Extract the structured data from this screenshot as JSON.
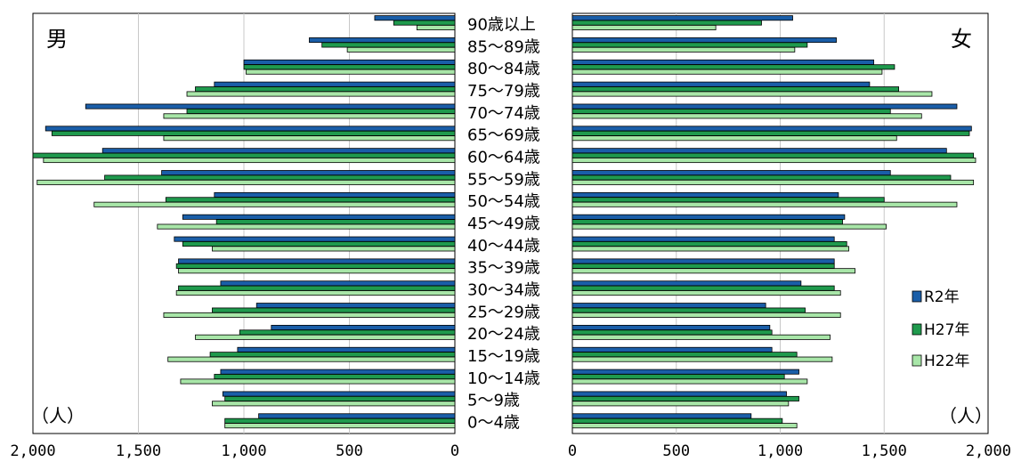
{
  "chart_data": {
    "type": "bar",
    "orientation": "horizontal",
    "layout": "population-pyramid",
    "categories": [
      "90歳以上",
      "85～89歳",
      "80～84歳",
      "75～79歳",
      "70～74歳",
      "65～69歳",
      "60～64歳",
      "55～59歳",
      "50～54歳",
      "45～49歳",
      "40～44歳",
      "35～39歳",
      "30～34歳",
      "25～29歳",
      "20～24歳",
      "15～19歳",
      "10～14歳",
      "5～9歳",
      "0～4歳"
    ],
    "series_names": [
      "R2年",
      "H27年",
      "H22年"
    ],
    "colors": [
      "#1a5ea8",
      "#1f9a4d",
      "#a8e6a8"
    ],
    "male": {
      "label": "男",
      "unit": "（人）",
      "xlim": [
        2000,
        0
      ],
      "ticks": [
        "2,000",
        "1,500",
        "1,000",
        "500",
        "0"
      ],
      "tick_values": [
        2000,
        1500,
        1000,
        500,
        0
      ],
      "series": [
        {
          "name": "R2年",
          "values": [
            380,
            690,
            1000,
            1140,
            1750,
            1940,
            1670,
            1390,
            1140,
            1290,
            1330,
            1310,
            1110,
            940,
            870,
            1030,
            1110,
            1100,
            930
          ]
        },
        {
          "name": "H27年",
          "values": [
            290,
            630,
            1000,
            1230,
            1270,
            1910,
            2000,
            1660,
            1370,
            1130,
            1290,
            1320,
            1310,
            1150,
            1020,
            1160,
            1140,
            1090,
            1090
          ]
        },
        {
          "name": "H22年",
          "values": [
            180,
            510,
            990,
            1270,
            1380,
            1380,
            1950,
            1980,
            1710,
            1410,
            1150,
            1310,
            1320,
            1380,
            1230,
            1360,
            1300,
            1150,
            1090
          ]
        }
      ]
    },
    "female": {
      "label": "女",
      "unit": "（人）",
      "xlim": [
        0,
        2000
      ],
      "ticks": [
        "0",
        "500",
        "1,000",
        "1,500",
        "2,000"
      ],
      "tick_values": [
        0,
        500,
        1000,
        1500,
        2000
      ],
      "series": [
        {
          "name": "R2年",
          "values": [
            1060,
            1270,
            1450,
            1430,
            1850,
            1920,
            1800,
            1530,
            1280,
            1310,
            1260,
            1260,
            1100,
            930,
            950,
            960,
            1090,
            1030,
            860
          ]
        },
        {
          "name": "H27年",
          "values": [
            910,
            1130,
            1550,
            1570,
            1530,
            1910,
            1930,
            1820,
            1500,
            1300,
            1320,
            1260,
            1260,
            1120,
            960,
            1080,
            1020,
            1090,
            1010
          ]
        },
        {
          "name": "H22年",
          "values": [
            690,
            1070,
            1490,
            1730,
            1680,
            1560,
            1940,
            1930,
            1850,
            1510,
            1330,
            1360,
            1290,
            1290,
            1240,
            1250,
            1130,
            1040,
            1080
          ]
        }
      ]
    }
  }
}
